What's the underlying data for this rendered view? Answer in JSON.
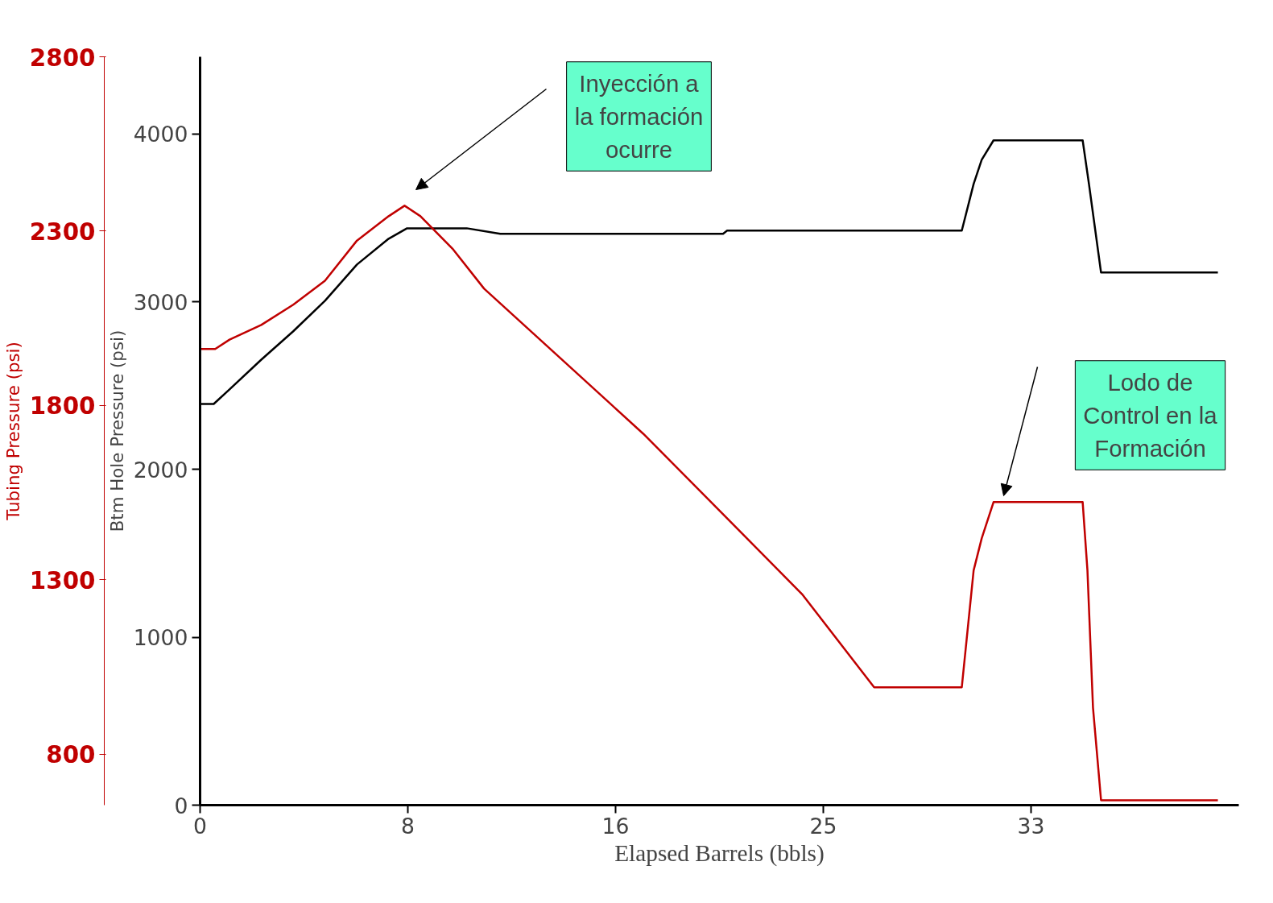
{
  "chart_data": {
    "type": "line",
    "xlabel": "Elapsed Barrels (bbls)",
    "ylabel": "Btm Hole Pressure (psi)",
    "y2label": "Tubing Pressure (psi)",
    "xlim": [
      0,
      41.25
    ],
    "xticks": [
      0,
      {
        "value": 8.25,
        "label": "8"
      },
      {
        "value": 16.5,
        "label": "16"
      },
      {
        "value": 24.75,
        "label": "25"
      },
      33
    ],
    "ylim": [
      0,
      4460
    ],
    "yticks": [
      0,
      1000,
      2000,
      3000,
      4000
    ],
    "y2lim": [
      654,
      2800
    ],
    "y2ticks": [
      800,
      1300,
      1800,
      2300,
      2800
    ],
    "grid": false,
    "marker": "none",
    "line_style": "solid",
    "series": [
      {
        "color": "#000000",
        "x": [
          0,
          0.54,
          1.17,
          2.43,
          3.7,
          4.96,
          6.23,
          7.49,
          8.22,
          10.59,
          11.92,
          20.77,
          20.93,
          30.25,
          30.72,
          31.04,
          31.51,
          35.05,
          35.3,
          35.78,
          40.42
        ],
        "values": [
          2391,
          2391,
          2478,
          2655,
          2824,
          3006,
          3222,
          3376,
          3438,
          3438,
          3405,
          3405,
          3424,
          3424,
          3702,
          3846,
          3962,
          3962,
          3702,
          3174,
          3174
        ]
      },
      {
        "color": "#c00000",
        "axis": "y2",
        "x": [
          0,
          0.6,
          1.17,
          2.43,
          3.7,
          4.96,
          6.23,
          7.49,
          8.12,
          8.75,
          10.02,
          11.28,
          14.44,
          17.6,
          20.77,
          23.93,
          26.77,
          30.25,
          30.72,
          31.04,
          31.51,
          35.05,
          35.24,
          35.46,
          35.78,
          40.42
        ],
        "values": [
          1962,
          1962,
          1989,
          2031,
          2089,
          2158,
          2273,
          2343,
          2373,
          2343,
          2250,
          2135,
          1927,
          1719,
          1488,
          1257,
          992,
          992,
          1327,
          1419,
          1523,
          1523,
          1327,
          934,
          668,
          668
        ]
      }
    ],
    "annotations": [
      "Inyección a la formación ocurre",
      "Lodo de Control en la Formación"
    ]
  }
}
